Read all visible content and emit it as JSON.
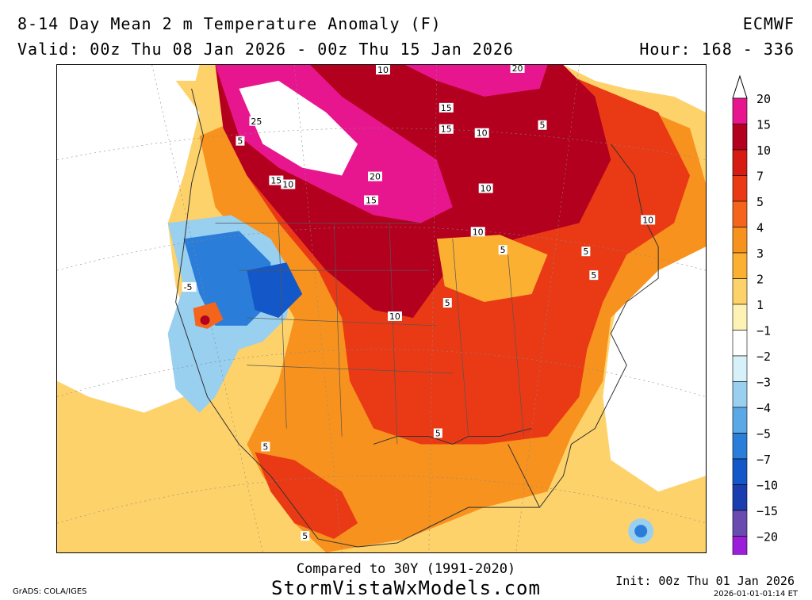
{
  "header": {
    "title": "8-14 Day Mean 2 m Temperature Anomaly (F)",
    "valid": "Valid: 00z Thu 08 Jan 2026 - 00z Thu 15 Jan 2026",
    "model": "ECMWF",
    "hour": "Hour: 168 - 336"
  },
  "legend": {
    "levels": [
      {
        "label": "20",
        "color": "#e8168e"
      },
      {
        "label": "15",
        "color": "#b3001e"
      },
      {
        "label": "10",
        "color": "#d71a12"
      },
      {
        "label": "7",
        "color": "#ea3a15"
      },
      {
        "label": "5",
        "color": "#f4641a"
      },
      {
        "label": "4",
        "color": "#f8921e"
      },
      {
        "label": "3",
        "color": "#fbb032"
      },
      {
        "label": "2",
        "color": "#fdd26a"
      },
      {
        "label": "1",
        "color": "#fef2b4"
      },
      {
        "label": "-1",
        "color": "#ffffff"
      },
      {
        "label": "-2",
        "color": "#d6f1fa"
      },
      {
        "label": "-3",
        "color": "#99cfef"
      },
      {
        "label": "-4",
        "color": "#5aa8e6"
      },
      {
        "label": "-5",
        "color": "#2a7ed9"
      },
      {
        "label": "-7",
        "color": "#1457c8"
      },
      {
        "label": "-10",
        "color": "#1a3db0"
      },
      {
        "label": "-15",
        "color": "#6a4cb0"
      },
      {
        "label": "-20",
        "color": "#9b1fd9"
      }
    ]
  },
  "map": {
    "contour_labels": [
      "10",
      "20",
      "15",
      "15",
      "5",
      "10",
      "25",
      "5",
      "15",
      "10",
      "20",
      "15",
      "10",
      "10",
      "5",
      "5",
      "10",
      "5",
      "-5",
      "10",
      "5",
      "5",
      "5",
      "5"
    ]
  },
  "footer": {
    "compared": "Compared to 30Y (1991-2020)",
    "site": "StormVistaWxModels.com",
    "grads": "GrADS: COLA/IGES",
    "init": "Init: 00z Thu 01 Jan 2026",
    "stamp": "2026-01-01-01:14 ET"
  }
}
